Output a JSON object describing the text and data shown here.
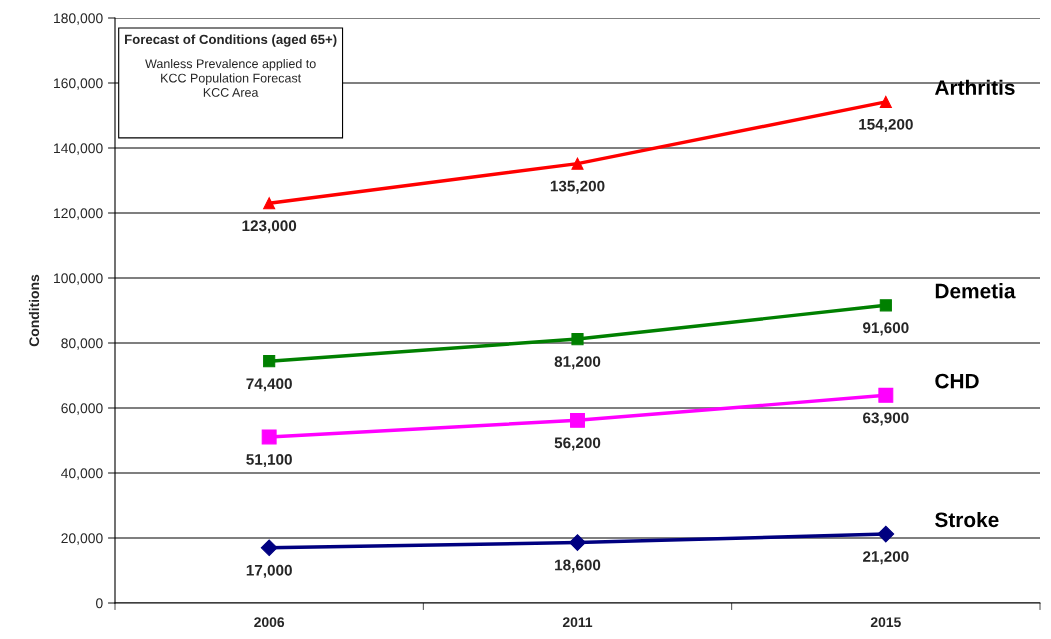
{
  "chart_data": {
    "type": "line",
    "title": "Forecast of Conditions (aged 65+)",
    "subtitle": "Wanless Prevalence applied to\nKCC Population Forecast\nKCC Area",
    "ylabel": "Conditions",
    "categories": [
      "2006",
      "2011",
      "2015"
    ],
    "series": [
      {
        "name": "Arthritis",
        "color": "#ff0000",
        "marker": "triangle",
        "values": [
          123000,
          135200,
          154200
        ],
        "value_labels": [
          "123,000",
          "135,200",
          "154,200"
        ]
      },
      {
        "name": "Demetia",
        "color": "#008000",
        "marker": "square",
        "values": [
          74400,
          81200,
          91600
        ],
        "value_labels": [
          "74,400",
          "81,200",
          "91,600"
        ]
      },
      {
        "name": "CHD",
        "color": "#ff00ff",
        "marker": "square",
        "values": [
          51100,
          56200,
          63900
        ],
        "value_labels": [
          "51,100",
          "56,200",
          "63,900"
        ]
      },
      {
        "name": "Stroke",
        "color": "#000080",
        "marker": "diamond",
        "values": [
          17000,
          18600,
          21200
        ],
        "value_labels": [
          "17,000",
          "18,600",
          "21,200"
        ]
      }
    ],
    "ylim": [
      0,
      180000
    ],
    "yticks": [
      0,
      {
        "value": 20000,
        "label": "20,000"
      },
      {
        "value": 40000,
        "label": "40,000"
      },
      {
        "value": 60000,
        "label": "60,000"
      },
      {
        "value": 80000,
        "label": "80,000"
      },
      {
        "value": 100000,
        "label": "100,000"
      },
      {
        "value": 120000,
        "label": "120,000"
      },
      {
        "value": 140000,
        "label": "140,000"
      },
      {
        "value": 160000,
        "label": "160,000"
      },
      {
        "value": 180000,
        "label": "180,000"
      }
    ],
    "grid": "y",
    "legend": false,
    "line_style": "solid"
  }
}
